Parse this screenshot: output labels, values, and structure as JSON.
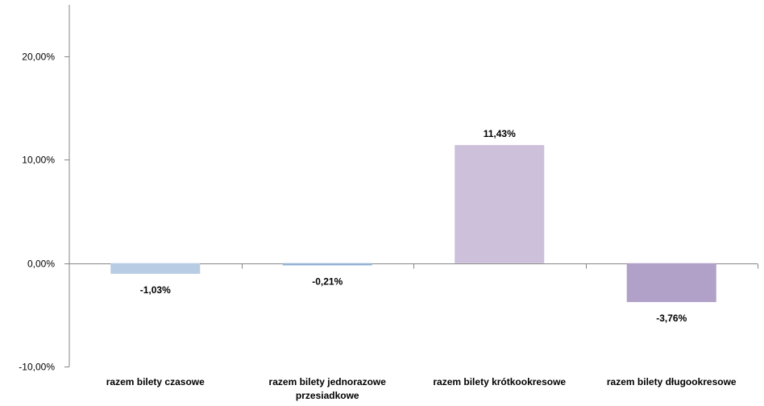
{
  "chart_data": {
    "type": "bar",
    "categories": [
      [
        "razem bilety czasowe"
      ],
      [
        "razem bilety jednorazowe",
        "przesiadkowe"
      ],
      [
        "razem bilety krótkookresowe"
      ],
      [
        "razem bilety długookresowe"
      ]
    ],
    "values": [
      -1.03,
      -0.21,
      11.43,
      -3.76
    ],
    "data_labels": [
      "-1,03%",
      "-0,21%",
      "11,43%",
      "-3,76%"
    ],
    "colors": [
      "#b8cce4",
      "#95b3d7",
      "#ccc0da",
      "#b1a0c7"
    ],
    "ylim": [
      -10,
      25
    ],
    "yticks": [
      -10,
      0,
      10,
      20
    ],
    "ytick_labels": [
      "-10,00%",
      "0,00%",
      "10,00%",
      "20,00%"
    ],
    "title": "",
    "xlabel": "",
    "ylabel": "",
    "grid": false,
    "legend": "none"
  }
}
